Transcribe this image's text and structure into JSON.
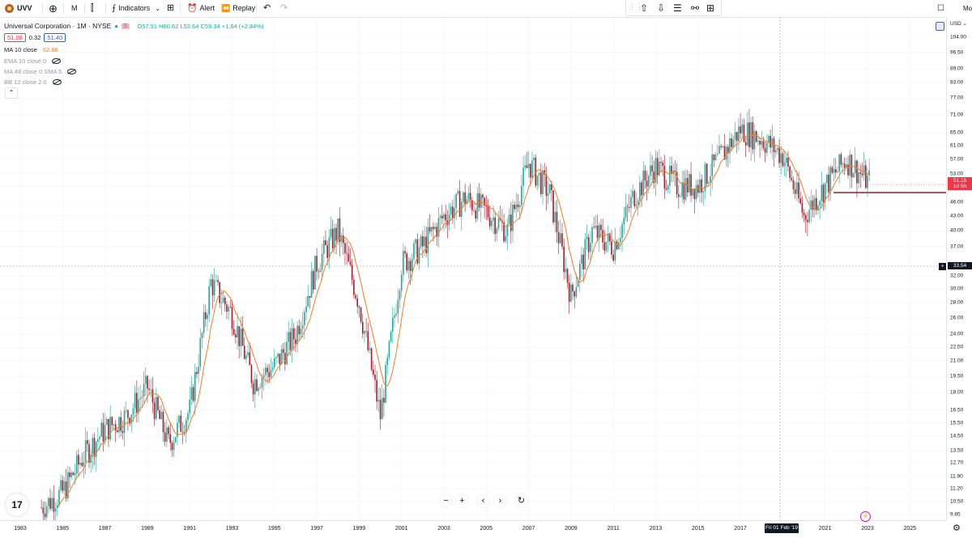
{
  "toolbar": {
    "symbol": "UVV",
    "interval": "M",
    "indicators_label": "Indicators",
    "alert_label": "Alert",
    "replay_label": "Replay",
    "right_cut": "Mo"
  },
  "legend": {
    "title": "Universal Corporation · 1M · NYSE",
    "ohlc": "O57.91 H60.62 L53.64 C59.34 +1.64 (+2.84%)",
    "bid": "51.08",
    "spread": "0.32",
    "ask": "51.40",
    "indicators": [
      {
        "label": "MA 10 close",
        "value": "62.86"
      },
      {
        "label": "EMA 10 close 0",
        "value": ""
      },
      {
        "label": "MA 48 close 0 SMA 5",
        "value": ""
      },
      {
        "label": "BB 12 close 2 0",
        "value": ""
      }
    ]
  },
  "price_scale": {
    "currency": "USD",
    "ticks": [
      "104.00",
      "96.50",
      "89.00",
      "83.00",
      "77.00",
      "71.00",
      "65.00",
      "61.00",
      "57.00",
      "53.00",
      "50.00",
      "46.00",
      "43.00",
      "40.00",
      "37.00",
      "32.00",
      "30.00",
      "28.00",
      "26.00",
      "24.00",
      "22.50",
      "21.00",
      "19.50",
      "18.00",
      "16.50",
      "15.50",
      "14.50",
      "13.50",
      "12.70",
      "11.90",
      "11.20",
      "10.50",
      "9.85"
    ],
    "last_price": "51.15",
    "countdown": "1d 5h",
    "crosshair_price": "33.54"
  },
  "time_scale": {
    "labels": [
      "1983",
      "1985",
      "1987",
      "1989",
      "1991",
      "1993",
      "1995",
      "1997",
      "1999",
      "2001",
      "2003",
      "2005",
      "2007",
      "2009",
      "2011",
      "2013",
      "2015",
      "2017",
      "2019",
      "2021",
      "2023",
      "2025"
    ],
    "crosshair_date": "Fri 01 Feb '19"
  },
  "colors": {
    "up": "#26a69a",
    "down": "#a11d2c",
    "ma": "#f57c27",
    "last_price": "#f23645",
    "accent": "#2962ff"
  },
  "chart_data": {
    "type": "candlestick",
    "symbol": "UVV",
    "interval": "1M",
    "x_range": [
      "1983",
      "2025"
    ],
    "scale": "log",
    "ylim": [
      9.85,
      104.0
    ],
    "yearly_approx_close": [
      {
        "x": "1984",
        "y": 10.2
      },
      {
        "x": "1985",
        "y": 11.0
      },
      {
        "x": "1986",
        "y": 13.2
      },
      {
        "x": "1987",
        "y": 15.0
      },
      {
        "x": "1988",
        "y": 16.0
      },
      {
        "x": "1989",
        "y": 18.5
      },
      {
        "x": "1990",
        "y": 14.0
      },
      {
        "x": "1991",
        "y": 16.5
      },
      {
        "x": "1992",
        "y": 31.0
      },
      {
        "x": "1993",
        "y": 26.5
      },
      {
        "x": "1994",
        "y": 19.0
      },
      {
        "x": "1995",
        "y": 20.5
      },
      {
        "x": "1996",
        "y": 24.0
      },
      {
        "x": "1997",
        "y": 34.0
      },
      {
        "x": "1998",
        "y": 40.0
      },
      {
        "x": "1999",
        "y": 28.0
      },
      {
        "x": "2000",
        "y": 16.0
      },
      {
        "x": "2001",
        "y": 34.0
      },
      {
        "x": "2002",
        "y": 37.0
      },
      {
        "x": "2003",
        "y": 43.0
      },
      {
        "x": "2004",
        "y": 47.0
      },
      {
        "x": "2005",
        "y": 44.0
      },
      {
        "x": "2006",
        "y": 40.0
      },
      {
        "x": "2007",
        "y": 56.0
      },
      {
        "x": "2008",
        "y": 48.0
      },
      {
        "x": "2009",
        "y": 29.0
      },
      {
        "x": "2010",
        "y": 40.0
      },
      {
        "x": "2011",
        "y": 37.0
      },
      {
        "x": "2012",
        "y": 48.0
      },
      {
        "x": "2013",
        "y": 55.0
      },
      {
        "x": "2014",
        "y": 50.0
      },
      {
        "x": "2015",
        "y": 50.0
      },
      {
        "x": "2016",
        "y": 57.0
      },
      {
        "x": "2017",
        "y": 66.0
      },
      {
        "x": "2018",
        "y": 63.0
      },
      {
        "x": "2019",
        "y": 58.0
      },
      {
        "x": "2020",
        "y": 43.0
      },
      {
        "x": "2021",
        "y": 50.0
      },
      {
        "x": "2022",
        "y": 57.0
      },
      {
        "x": "2023",
        "y": 51.15
      }
    ],
    "indicator": {
      "name": "MA 10 close",
      "last": 62.86
    },
    "horizontal_line_price": 48.0
  }
}
